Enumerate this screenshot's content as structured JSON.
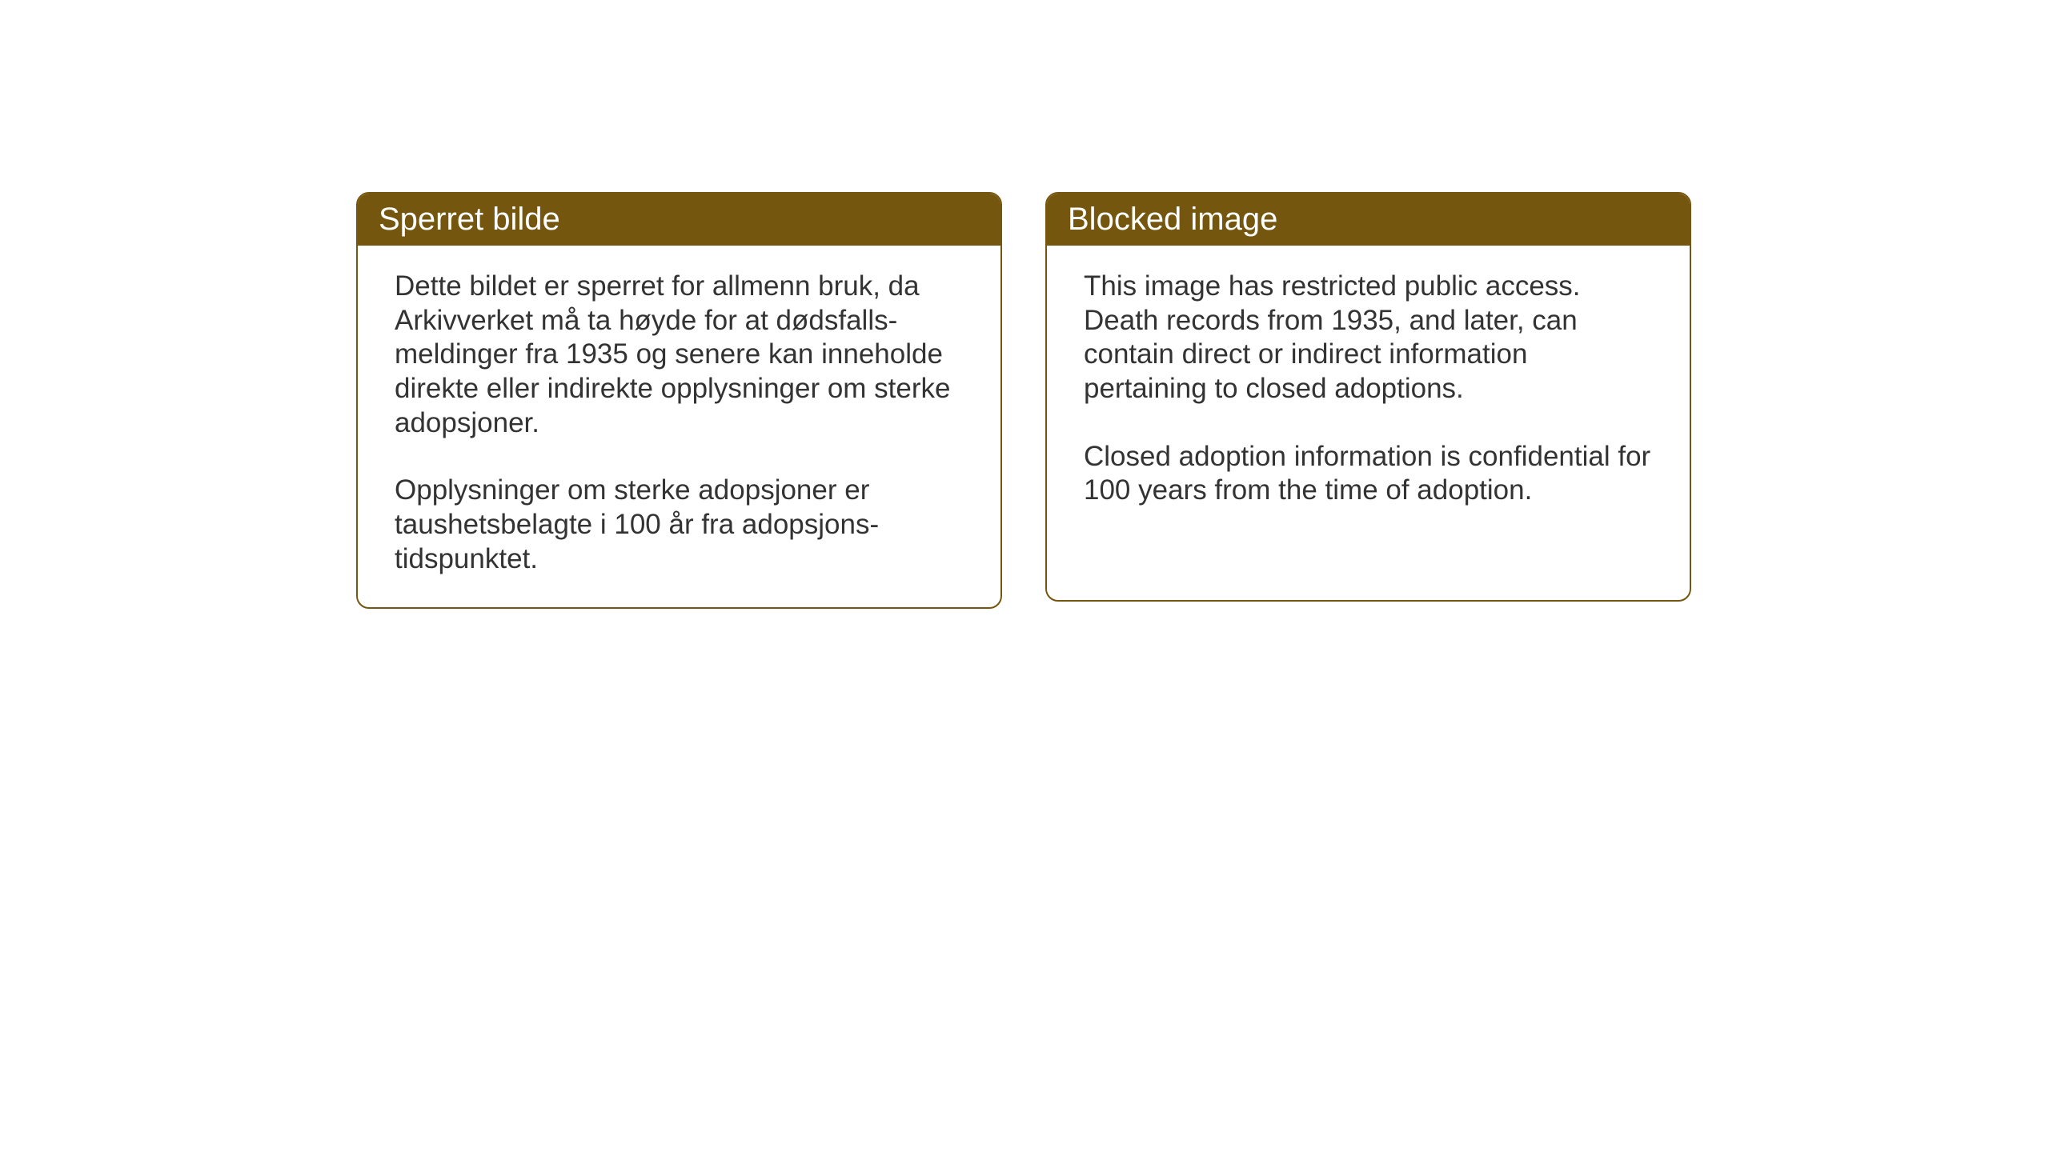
{
  "cards": {
    "norwegian": {
      "title": "Sperret bilde",
      "paragraph1": "Dette bildet er sperret for allmenn bruk, da Arkivverket må ta høyde for at dødsfalls-meldinger fra 1935 og senere kan inneholde direkte eller indirekte opplysninger om sterke adopsjoner.",
      "paragraph2": "Opplysninger om sterke adopsjoner er taushetsbelagte i 100 år fra adopsjons-tidspunktet."
    },
    "english": {
      "title": "Blocked image",
      "paragraph1": "This image has restricted public access. Death records from 1935, and later, can contain direct or indirect information pertaining to closed adoptions.",
      "paragraph2": "Closed adoption information is confidential for 100 years from the time of adoption."
    }
  },
  "styling": {
    "header_background": "#75560f",
    "header_text_color": "#ffffff",
    "border_color": "#75560f",
    "body_text_color": "#333333",
    "page_background": "#ffffff",
    "border_radius": 16,
    "header_fontsize": 40,
    "body_fontsize": 35
  }
}
